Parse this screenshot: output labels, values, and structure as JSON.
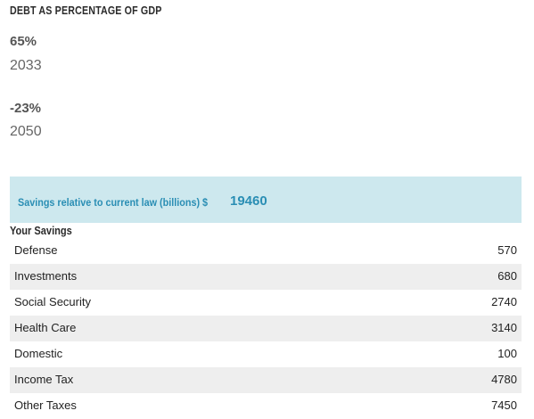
{
  "header": {
    "title": "DEBT AS PERCENTAGE OF GDP"
  },
  "stats": [
    {
      "value": "65%",
      "year": "2033"
    },
    {
      "value": "-23%",
      "year": "2050"
    }
  ],
  "savings": {
    "label": "Savings relative to current law (billions) $",
    "value": "19460"
  },
  "your_savings": {
    "title": "Your Savings",
    "rows": [
      {
        "label": "Defense",
        "value": "570"
      },
      {
        "label": "Investments",
        "value": "680"
      },
      {
        "label": "Social Security",
        "value": "2740"
      },
      {
        "label": "Health Care",
        "value": "3140"
      },
      {
        "label": "Domestic",
        "value": "100"
      },
      {
        "label": "Income Tax",
        "value": "4780"
      },
      {
        "label": "Other Taxes",
        "value": "7450"
      }
    ]
  }
}
